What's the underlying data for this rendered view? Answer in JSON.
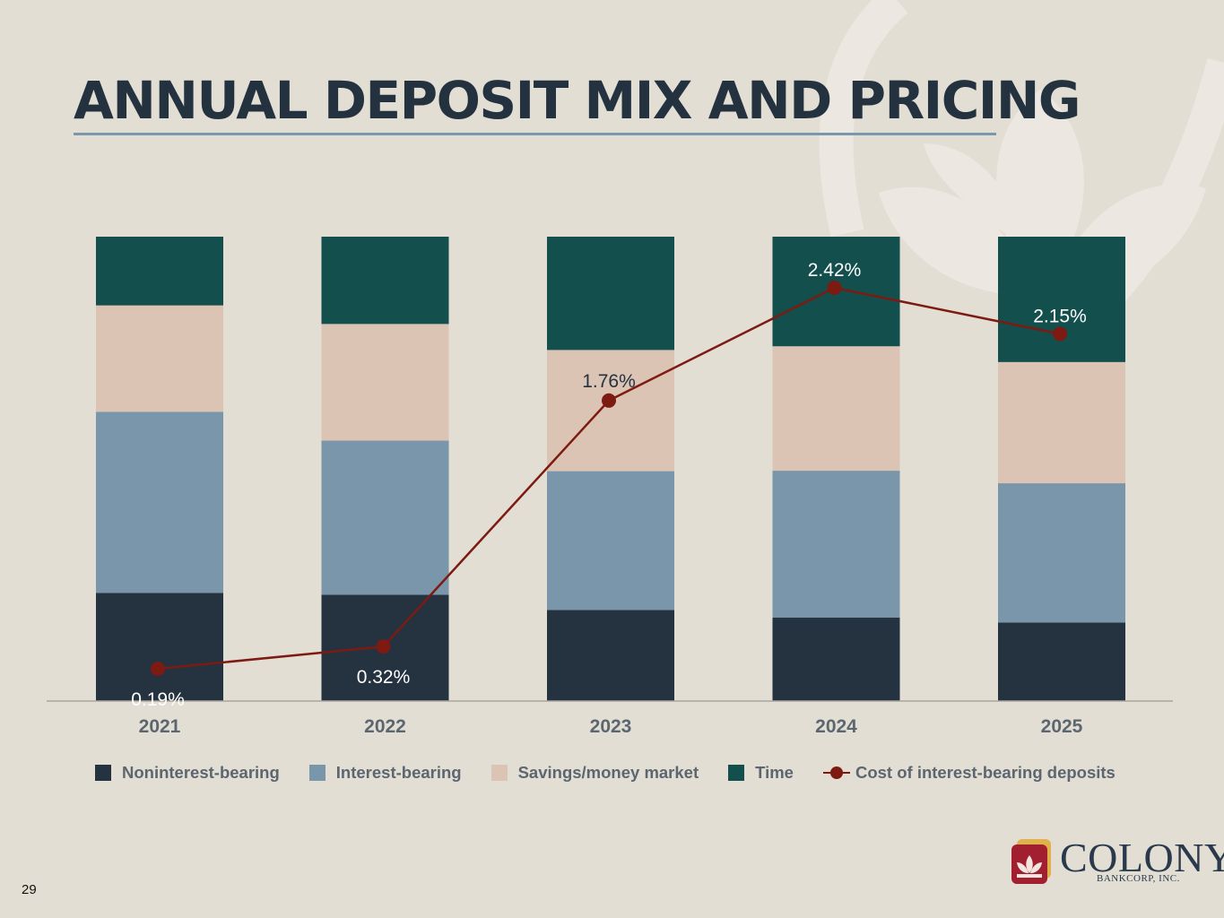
{
  "slide": {
    "title": "ANNUAL DEPOSIT MIX AND PRICING",
    "page_number": "29"
  },
  "logo": {
    "name": "COLONY",
    "subtitle": "BANKCORP, INC."
  },
  "colors": {
    "background": "#e3ded3",
    "title": "#243240",
    "noninterest": "#253240",
    "interest": "#7a96ab",
    "savings": "#dcc4b4",
    "time": "#134f4d",
    "line": "#7d1a12"
  },
  "chart_data": {
    "type": "bar",
    "stacked": true,
    "normalized_to_percent": true,
    "categories": [
      "2021",
      "2022",
      "2023",
      "2024",
      "2025"
    ],
    "series": [
      {
        "name": "Noninterest-bearing",
        "values": [
          23.3,
          22.9,
          19.6,
          18.0,
          16.9
        ]
      },
      {
        "name": "Interest-bearing",
        "values": [
          39.0,
          33.2,
          29.9,
          31.6,
          30.0
        ]
      },
      {
        "name": "Savings/money market",
        "values": [
          22.9,
          25.1,
          26.1,
          26.8,
          26.1
        ]
      },
      {
        "name": "Time",
        "values": [
          14.8,
          18.8,
          24.4,
          23.6,
          27.0
        ]
      }
    ],
    "line_series": {
      "name": "Cost of interest-bearing deposits",
      "values": [
        0.19,
        0.32,
        1.76,
        2.42,
        2.15
      ],
      "labels": [
        "0.19%",
        "0.32%",
        "1.76%",
        "2.42%",
        "2.15%"
      ],
      "ylim": [
        0,
        3.5
      ]
    },
    "ylim": [
      0,
      100
    ],
    "legend_position": "bottom",
    "grid": false
  }
}
